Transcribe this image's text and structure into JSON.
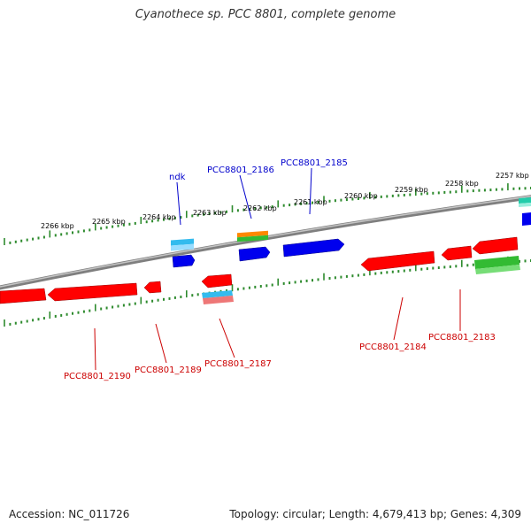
{
  "title": "Cyanothece sp. PCC 8801, complete genome",
  "footer": {
    "accession": "Accession: NC_011726",
    "summary": "Topology: circular; Length: 4,679,413 bp; Genes: 4,309"
  },
  "scale_labels": [
    "2266 kbp",
    "2265 kbp",
    "2264 kbp",
    "2263 kbp",
    "2262 kbp",
    "2261 kbp",
    "2260 kbp",
    "2259 kbp",
    "2258 kbp",
    "2257 kbp"
  ],
  "gene_labels": {
    "top": [
      "ndk",
      "PCC8801_2186",
      "PCC8801_2185"
    ],
    "bottom": [
      "PCC8801_2190",
      "PCC8801_2189",
      "PCC8801_2187",
      "PCC8801_2184",
      "PCC8801_2183"
    ]
  },
  "colors": {
    "backbone": "#808080",
    "tick": "#2e8b2e",
    "gene_red": "#ff0000",
    "gene_blue": "#0000ee",
    "gene_cyan": "#33bbee",
    "gene_green": "#33bb33",
    "gene_orange": "#ff8800",
    "gene_teal": "#22ccaa",
    "gene_pink": "#ee7777",
    "label_blue": "#0000cc",
    "label_red": "#cc0000"
  }
}
